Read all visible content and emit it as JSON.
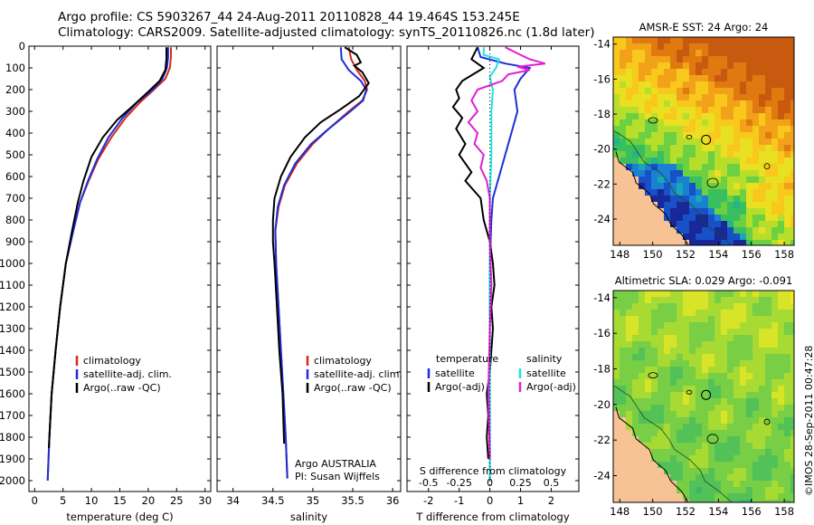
{
  "header": {
    "line1": "Argo profile: CS 5903267_44 24-Aug-2011 20110828_44 19.464S 153.245E",
    "line2": "Climatology: CARS2009. Satellite-adjusted climatology: synTS_20110826.nc (1.8d later)"
  },
  "stamp": "©IMOS 28-Sep-2011 00:47:28",
  "colors": {
    "climatology": "#d42a1a",
    "satellite": "#1b2fd8",
    "argo": "#000000",
    "salinity_satellite": "#1fe3e3",
    "salinity_argo": "#e11ed6",
    "land": "#f7c294"
  },
  "chart_data": [
    {
      "id": "temperature",
      "type": "line",
      "xlabel": "temperature (deg C)",
      "ylim": [
        2050,
        0
      ],
      "xlim": [
        -1,
        31
      ],
      "xticks": [
        0,
        5,
        10,
        15,
        20,
        25,
        30
      ],
      "yticks": [
        0,
        100,
        200,
        300,
        400,
        500,
        600,
        700,
        800,
        900,
        1000,
        1100,
        1200,
        1300,
        1400,
        1500,
        1600,
        1700,
        1800,
        1900,
        2000
      ],
      "legend": [
        "climatology",
        "satellite-adj. clim.",
        "Argo(..raw -QC)"
      ],
      "series": [
        {
          "name": "climatology",
          "color": "#d42a1a",
          "points": [
            [
              24.0,
              5
            ],
            [
              24.0,
              50
            ],
            [
              23.8,
              100
            ],
            [
              23.0,
              150
            ],
            [
              21.0,
              200
            ],
            [
              18.5,
              260
            ],
            [
              16.0,
              330
            ],
            [
              13.5,
              420
            ],
            [
              11.2,
              520
            ],
            [
              9.5,
              620
            ],
            [
              8.0,
              720
            ],
            [
              6.8,
              850
            ],
            [
              5.5,
              1000
            ],
            [
              4.5,
              1200
            ],
            [
              3.7,
              1400
            ],
            [
              3.0,
              1600
            ],
            [
              2.6,
              1800
            ],
            [
              2.3,
              2000
            ]
          ]
        },
        {
          "name": "satellite-adj. clim.",
          "color": "#1b2fd8",
          "points": [
            [
              23.5,
              5
            ],
            [
              23.5,
              50
            ],
            [
              23.3,
              100
            ],
            [
              22.5,
              150
            ],
            [
              20.8,
              200
            ],
            [
              18.0,
              260
            ],
            [
              15.5,
              330
            ],
            [
              13.0,
              420
            ],
            [
              11.0,
              520
            ],
            [
              9.4,
              620
            ],
            [
              8.0,
              720
            ],
            [
              6.8,
              850
            ],
            [
              5.5,
              1000
            ],
            [
              4.5,
              1200
            ],
            [
              3.7,
              1400
            ],
            [
              3.0,
              1600
            ],
            [
              2.6,
              1800
            ],
            [
              2.3,
              2000
            ]
          ]
        },
        {
          "name": "Argo(..raw -QC)",
          "color": "#000000",
          "points": [
            [
              23.2,
              5
            ],
            [
              23.2,
              60
            ],
            [
              23.0,
              110
            ],
            [
              22.0,
              160
            ],
            [
              20.0,
              210
            ],
            [
              17.5,
              270
            ],
            [
              14.5,
              340
            ],
            [
              12.0,
              420
            ],
            [
              10.0,
              510
            ],
            [
              8.6,
              620
            ],
            [
              7.6,
              720
            ],
            [
              6.6,
              850
            ],
            [
              5.5,
              1000
            ],
            [
              4.5,
              1200
            ],
            [
              3.7,
              1400
            ],
            [
              3.0,
              1600
            ],
            [
              2.5,
              1850
            ]
          ]
        }
      ]
    },
    {
      "id": "salinity",
      "type": "line",
      "xlabel": "salinity",
      "ylim": [
        2050,
        0
      ],
      "xlim": [
        33.8,
        36.1
      ],
      "xticks": [
        34,
        34.5,
        35,
        35.5,
        36
      ],
      "legend": [
        "climatology",
        "satellite-adj. clim.",
        "Argo(..raw -QC)"
      ],
      "annotation": [
        "Argo AUSTRALIA",
        "PI: Susan Wijffels"
      ],
      "series": [
        {
          "name": "climatology",
          "color": "#d42a1a",
          "points": [
            [
              35.45,
              5
            ],
            [
              35.48,
              60
            ],
            [
              35.55,
              110
            ],
            [
              35.65,
              160
            ],
            [
              35.68,
              200
            ],
            [
              35.62,
              250
            ],
            [
              35.45,
              300
            ],
            [
              35.2,
              380
            ],
            [
              35.0,
              450
            ],
            [
              34.8,
              540
            ],
            [
              34.65,
              640
            ],
            [
              34.57,
              740
            ],
            [
              34.53,
              850
            ],
            [
              34.54,
              1000
            ],
            [
              34.57,
              1200
            ],
            [
              34.6,
              1400
            ],
            [
              34.63,
              1600
            ],
            [
              34.66,
              1800
            ],
            [
              34.68,
              1990
            ]
          ]
        },
        {
          "name": "satellite-adj. clim.",
          "color": "#1b2fd8",
          "points": [
            [
              35.35,
              5
            ],
            [
              35.36,
              60
            ],
            [
              35.45,
              110
            ],
            [
              35.6,
              160
            ],
            [
              35.67,
              200
            ],
            [
              35.63,
              250
            ],
            [
              35.47,
              300
            ],
            [
              35.2,
              380
            ],
            [
              34.98,
              450
            ],
            [
              34.78,
              540
            ],
            [
              34.64,
              640
            ],
            [
              34.56,
              740
            ],
            [
              34.53,
              850
            ],
            [
              34.54,
              1000
            ],
            [
              34.57,
              1200
            ],
            [
              34.6,
              1400
            ],
            [
              34.63,
              1600
            ],
            [
              34.66,
              1800
            ],
            [
              34.68,
              1990
            ]
          ]
        },
        {
          "name": "Argo(..raw -QC)",
          "color": "#000000",
          "points": [
            [
              35.4,
              5
            ],
            [
              35.55,
              40
            ],
            [
              35.6,
              75
            ],
            [
              35.52,
              90
            ],
            [
              35.62,
              120
            ],
            [
              35.7,
              170
            ],
            [
              35.58,
              230
            ],
            [
              35.35,
              290
            ],
            [
              35.1,
              350
            ],
            [
              34.9,
              420
            ],
            [
              34.72,
              510
            ],
            [
              34.6,
              600
            ],
            [
              34.52,
              700
            ],
            [
              34.5,
              800
            ],
            [
              34.5,
              900
            ],
            [
              34.52,
              1000
            ],
            [
              34.55,
              1200
            ],
            [
              34.58,
              1400
            ],
            [
              34.62,
              1600
            ],
            [
              34.64,
              1830
            ]
          ]
        }
      ]
    },
    {
      "id": "differences",
      "type": "line",
      "xlabel": "T difference from climatology",
      "xlabel_top": "S difference from climatology",
      "ylim": [
        2050,
        0
      ],
      "xlim": [
        -2.7,
        2.9
      ],
      "xticks": [
        -2,
        -1,
        0,
        1,
        2
      ],
      "xticks_top_labels": [
        "-0.5",
        "-0.25",
        "0",
        "0.25",
        "0.5"
      ],
      "xticks_top_pos": [
        -2,
        -1,
        0,
        1,
        2
      ],
      "legend_titles": [
        "temperature",
        "salinity"
      ],
      "legend": [
        "satellite",
        "Argo(-adj)",
        "satellite",
        "Argo(-adj)"
      ],
      "series": [
        {
          "name": "T satellite",
          "color": "#1b2fd8",
          "points": [
            [
              -0.4,
              5
            ],
            [
              -0.3,
              50
            ],
            [
              0.5,
              80
            ],
            [
              1.3,
              100
            ],
            [
              1.0,
              150
            ],
            [
              0.8,
              200
            ],
            [
              0.9,
              300
            ],
            [
              0.7,
              400
            ],
            [
              0.5,
              500
            ],
            [
              0.3,
              600
            ],
            [
              0.1,
              700
            ],
            [
              0.05,
              800
            ],
            [
              0,
              1000
            ],
            [
              0,
              1500
            ],
            [
              0,
              2000
            ]
          ]
        },
        {
          "name": "T Argo(-adj)",
          "color": "#000000",
          "points": [
            [
              -0.4,
              5
            ],
            [
              -0.6,
              60
            ],
            [
              -0.2,
              100
            ],
            [
              -0.9,
              160
            ],
            [
              -1.1,
              200
            ],
            [
              -1.0,
              240
            ],
            [
              -1.2,
              280
            ],
            [
              -0.9,
              330
            ],
            [
              -1.1,
              380
            ],
            [
              -0.8,
              450
            ],
            [
              -1.0,
              500
            ],
            [
              -0.6,
              580
            ],
            [
              -0.8,
              620
            ],
            [
              -0.3,
              700
            ],
            [
              -0.2,
              800
            ],
            [
              0,
              900
            ],
            [
              0.1,
              1000
            ],
            [
              0.15,
              1100
            ],
            [
              0.05,
              1200
            ],
            [
              0.1,
              1300
            ],
            [
              0.05,
              1400
            ],
            [
              0,
              1500
            ],
            [
              -0.1,
              1600
            ],
            [
              -0.05,
              1700
            ],
            [
              -0.1,
              1800
            ],
            [
              -0.05,
              1900
            ]
          ]
        },
        {
          "name": "S satellite",
          "color": "#1fe3e3",
          "points": [
            [
              -0.2,
              5
            ],
            [
              -0.2,
              40
            ],
            [
              0.3,
              60
            ],
            [
              0.2,
              100
            ],
            [
              0,
              140
            ],
            [
              0.1,
              200
            ],
            [
              0.05,
              300
            ],
            [
              0.05,
              500
            ],
            [
              0,
              700
            ],
            [
              0,
              1000
            ],
            [
              0,
              1500
            ],
            [
              0,
              2000
            ]
          ]
        },
        {
          "name": "S Argo(-adj)",
          "color": "#e11ed6",
          "points": [
            [
              0.5,
              5
            ],
            [
              1.0,
              40
            ],
            [
              1.3,
              60
            ],
            [
              1.8,
              80
            ],
            [
              0.9,
              95
            ],
            [
              1.3,
              110
            ],
            [
              0.6,
              130
            ],
            [
              0.4,
              160
            ],
            [
              -0.4,
              200
            ],
            [
              -0.6,
              250
            ],
            [
              -0.4,
              300
            ],
            [
              -0.7,
              350
            ],
            [
              -0.4,
              400
            ],
            [
              -0.5,
              450
            ],
            [
              -0.2,
              500
            ],
            [
              -0.3,
              560
            ],
            [
              -0.1,
              620
            ],
            [
              0,
              700
            ],
            [
              0,
              900
            ],
            [
              0.05,
              1100
            ],
            [
              0,
              1300
            ],
            [
              -0.05,
              1600
            ],
            [
              0,
              1900
            ]
          ]
        }
      ]
    },
    {
      "id": "sst_map",
      "type": "heatmap",
      "title": "AMSR-E SST: 24 Argo: 24",
      "xticks": [
        148,
        150,
        152,
        154,
        156,
        158
      ],
      "yticks": [
        -14,
        -16,
        -18,
        -20,
        -22,
        -24
      ],
      "xlim": [
        147.6,
        158.6
      ],
      "ylim": [
        -25.5,
        -13.6
      ],
      "argo_position": [
        153.245,
        -19.464
      ]
    },
    {
      "id": "sla_map",
      "type": "heatmap",
      "title": "Altimetric SLA: 0.029 Argo: -0.091",
      "xticks": [
        148,
        150,
        152,
        154,
        156,
        158
      ],
      "yticks": [
        -14,
        -16,
        -18,
        -20,
        -22,
        -24
      ],
      "xlim": [
        147.6,
        158.6
      ],
      "ylim": [
        -25.5,
        -13.6
      ],
      "argo_position": [
        153.245,
        -19.464
      ]
    }
  ]
}
